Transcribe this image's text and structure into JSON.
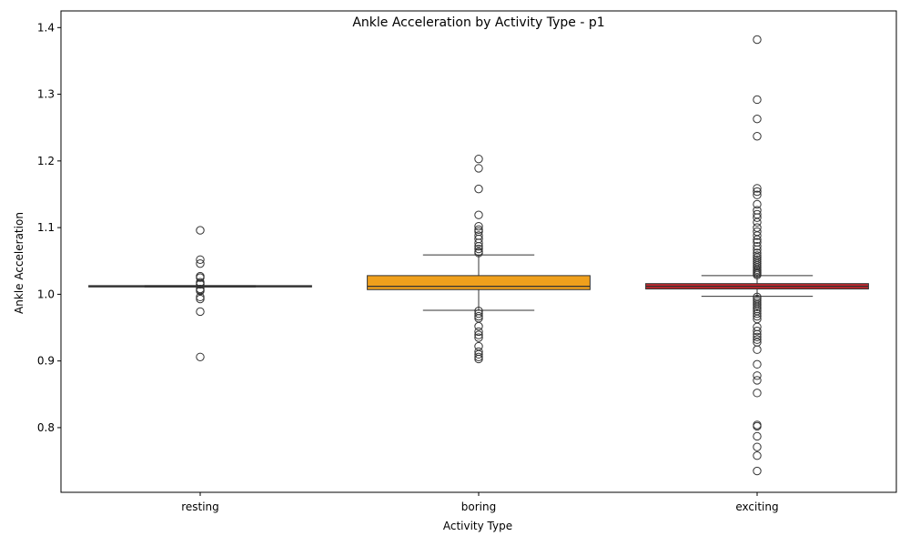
{
  "chart_data": {
    "type": "box",
    "title": "Ankle Acceleration by Activity Type - p1",
    "xlabel": "Activity Type",
    "ylabel": "Ankle Acceleration",
    "categories": [
      "resting",
      "boring",
      "exciting"
    ],
    "ylim": [
      0.703,
      1.425
    ],
    "yticks": [
      "0.8",
      "0.9",
      "1.0",
      "1.1",
      "1.2",
      "1.3",
      "1.4"
    ],
    "grid": false,
    "boxes": [
      {
        "category": "resting",
        "color": "#3b75af",
        "q1": 1.011,
        "median": 1.012,
        "q3": 1.013,
        "whisker_low": 1.011,
        "whisker_high": 1.013,
        "outliers": [
          1.096,
          1.052,
          1.046,
          1.027,
          1.025,
          1.018,
          1.016,
          1.015,
          1.008,
          1.006,
          1.005,
          0.996,
          0.993,
          0.974,
          0.906
        ]
      },
      {
        "category": "boring",
        "color": "#f0a01c",
        "q1": 1.007,
        "median": 1.012,
        "q3": 1.028,
        "whisker_low": 0.976,
        "whisker_high": 1.059,
        "outliers": [
          1.203,
          1.189,
          1.158,
          1.119,
          1.102,
          1.097,
          1.094,
          1.088,
          1.083,
          1.077,
          1.072,
          1.068,
          1.064,
          1.062,
          0.975,
          0.971,
          0.967,
          0.964,
          0.952,
          0.944,
          0.939,
          0.935,
          0.922,
          0.914,
          0.91,
          0.906,
          0.903
        ]
      },
      {
        "category": "exciting",
        "color": "#c0272d",
        "q1": 1.008,
        "median": 1.012,
        "q3": 1.016,
        "whisker_low": 0.997,
        "whisker_high": 1.028,
        "outliers": [
          1.382,
          1.292,
          1.263,
          1.237,
          1.159,
          1.154,
          1.149,
          1.135,
          1.126,
          1.12,
          1.115,
          1.108,
          1.1,
          1.094,
          1.088,
          1.082,
          1.078,
          1.072,
          1.067,
          1.062,
          1.058,
          1.055,
          1.052,
          1.049,
          1.046,
          1.043,
          1.04,
          1.037,
          1.035,
          1.033,
          1.031,
          1.029,
          0.996,
          0.993,
          0.99,
          0.987,
          0.984,
          0.981,
          0.978,
          0.975,
          0.971,
          0.967,
          0.963,
          0.951,
          0.945,
          0.94,
          0.936,
          0.932,
          0.928,
          0.917,
          0.895,
          0.878,
          0.871,
          0.852,
          0.804,
          0.802,
          0.787,
          0.771,
          0.758,
          0.735
        ]
      }
    ]
  }
}
